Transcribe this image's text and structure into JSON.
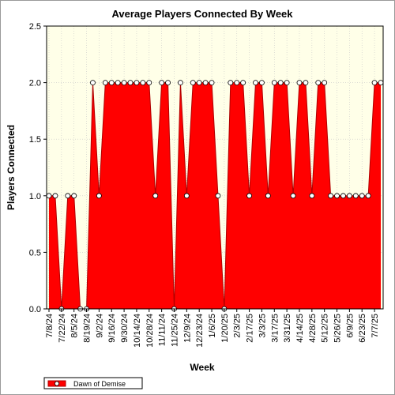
{
  "chart_data": {
    "type": "area",
    "title": "Average Players Connected By Week",
    "xlabel": "Week",
    "ylabel": "Players Connected",
    "ylim": [
      0,
      2.5
    ],
    "yticks": [
      "0.0",
      "0.5",
      "1.0",
      "1.5",
      "2.0",
      "2.5"
    ],
    "grid": true,
    "legend_position": "bottom-left",
    "colors": {
      "series": "#ff0000",
      "edge": "#b00000",
      "plot_bg": "#ffffe8",
      "grid": "#c8c8c8",
      "marker_fill": "#ffffff"
    },
    "x": [
      "7/8/24",
      "7/15/24",
      "7/22/24",
      "7/29/24",
      "8/5/24",
      "8/12/24",
      "8/19/24",
      "8/26/24",
      "9/2/24",
      "9/9/24",
      "9/16/24",
      "9/23/24",
      "9/30/24",
      "10/7/24",
      "10/14/24",
      "10/21/24",
      "10/28/24",
      "11/4/24",
      "11/11/24",
      "11/18/24",
      "11/25/24",
      "12/2/24",
      "12/9/24",
      "12/16/24",
      "12/23/24",
      "12/30/24",
      "1/6/25",
      "1/13/25",
      "1/20/25",
      "1/27/25",
      "2/3/25",
      "2/10/25",
      "2/17/25",
      "2/24/25",
      "3/3/25",
      "3/10/25",
      "3/17/25",
      "3/24/25",
      "3/31/25",
      "4/7/25",
      "4/14/25",
      "4/21/25",
      "4/28/25",
      "5/5/25",
      "5/12/25",
      "5/19/25",
      "5/26/25",
      "6/2/25",
      "6/9/25",
      "6/16/25",
      "6/23/25",
      "6/30/25",
      "7/7/25",
      "7/14/25"
    ],
    "x_tick_labels": [
      "7/8/24",
      "7/22/24",
      "8/5/24",
      "8/19/24",
      "9/2/24",
      "9/16/24",
      "9/30/24",
      "10/14/24",
      "10/28/24",
      "11/11/24",
      "11/25/24",
      "12/9/24",
      "12/23/24",
      "1/6/25",
      "1/20/25",
      "2/3/25",
      "2/17/25",
      "3/3/25",
      "3/17/25",
      "3/31/25",
      "4/14/25",
      "4/28/25",
      "5/12/25",
      "5/26/25",
      "6/9/25",
      "6/23/25",
      "7/7/25"
    ],
    "series": [
      {
        "name": "Dawn of Demise",
        "values": [
          1,
          1,
          0,
          1,
          1,
          0,
          0,
          2,
          1,
          2,
          2,
          2,
          2,
          2,
          2,
          2,
          2,
          1,
          2,
          2,
          0,
          2,
          1,
          2,
          2,
          2,
          2,
          1,
          0,
          2,
          2,
          2,
          1,
          2,
          2,
          1,
          2,
          2,
          2,
          1,
          2,
          2,
          1,
          2,
          2,
          1,
          1,
          1,
          1,
          1,
          1,
          1,
          2,
          2
        ]
      }
    ]
  }
}
